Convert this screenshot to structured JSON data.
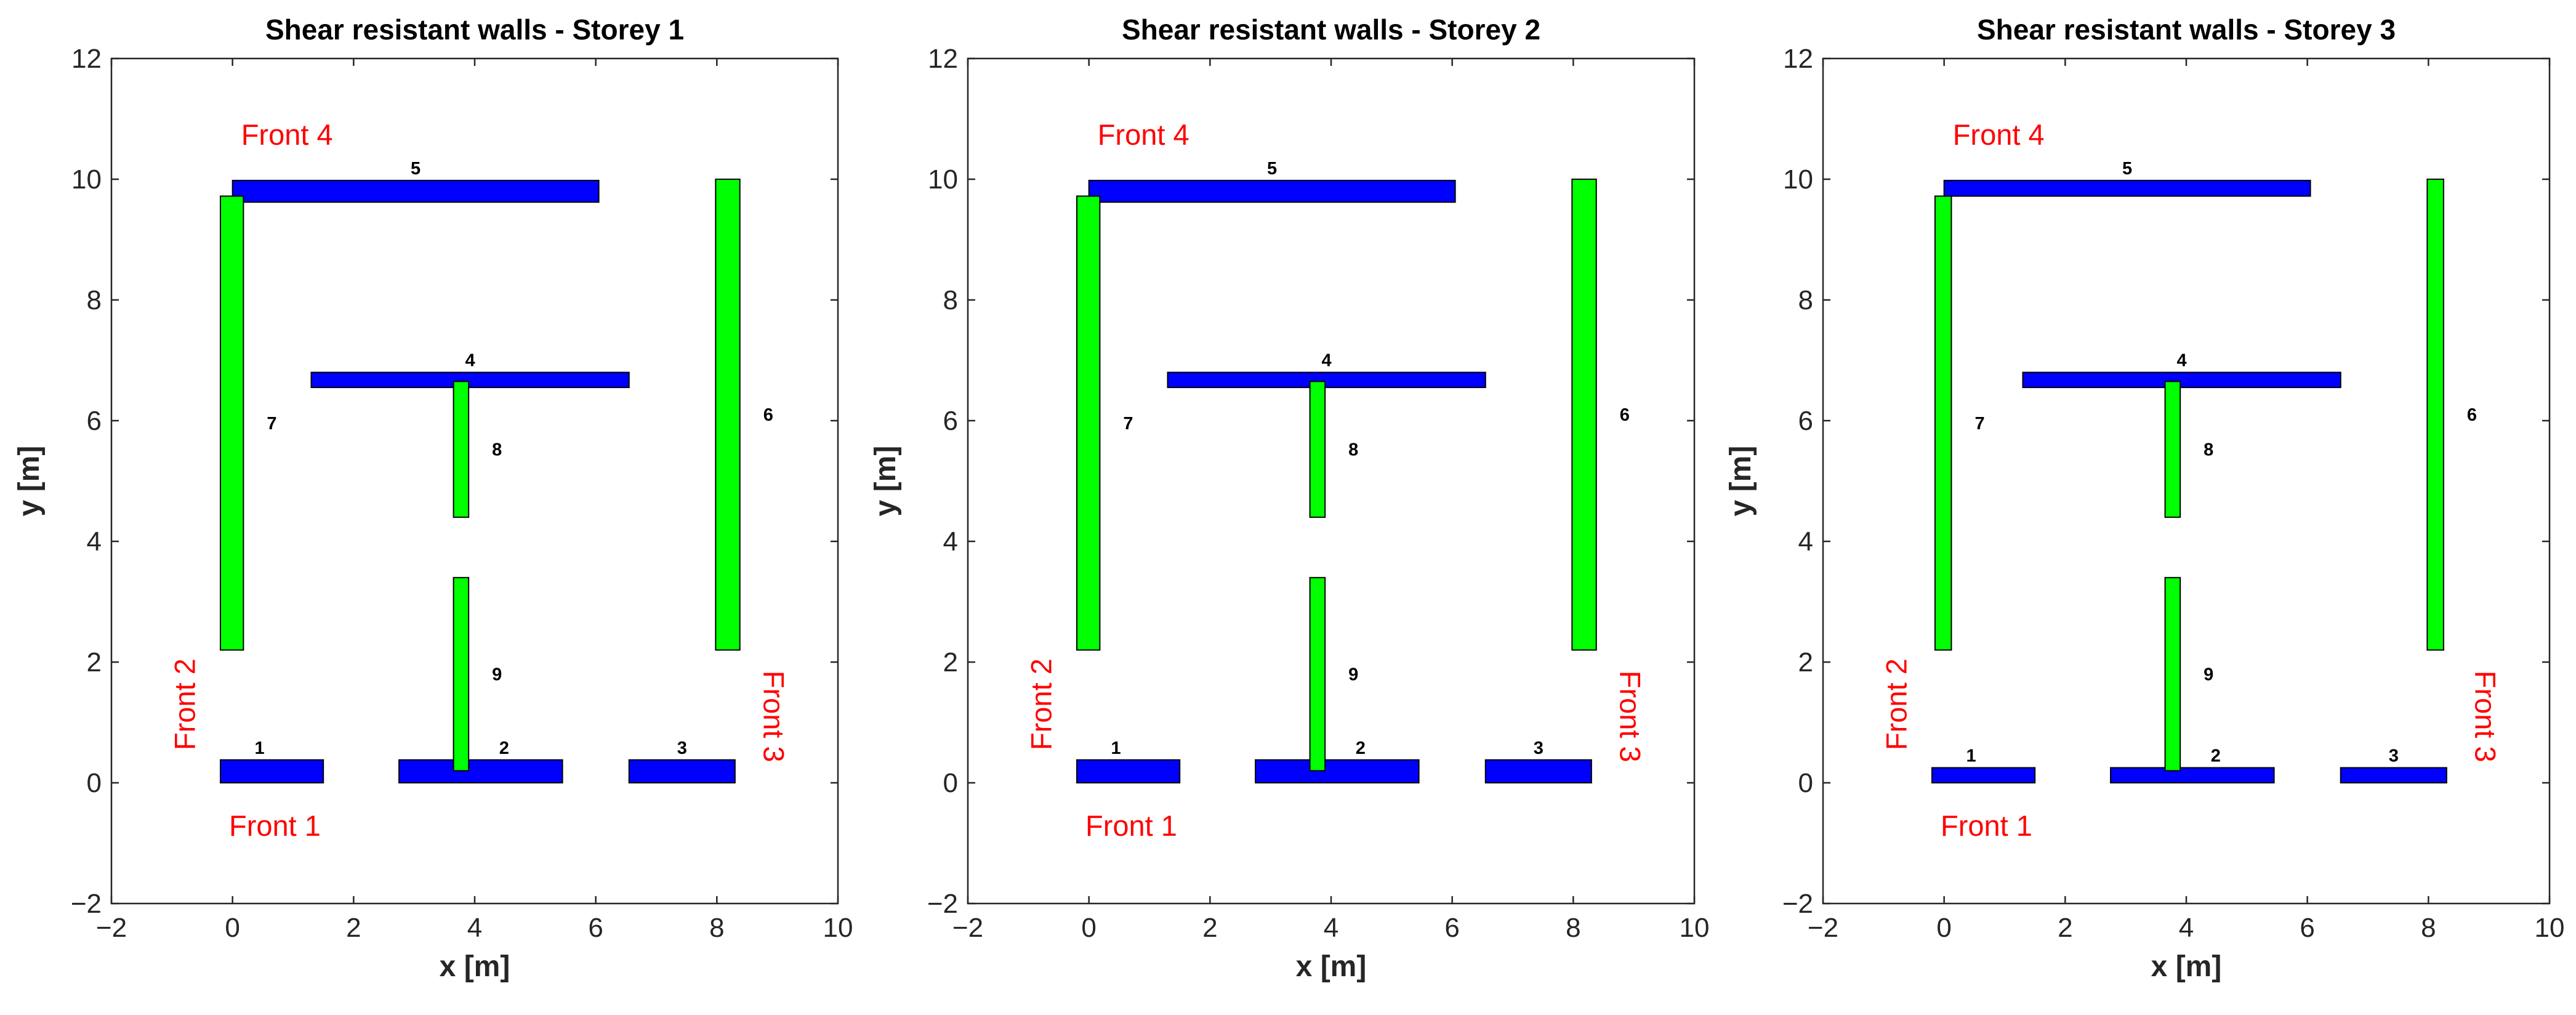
{
  "chart_data": [
    {
      "type": "rectangle-plan",
      "title": "Shear resistant walls - Storey 1",
      "xlabel": "x [m]",
      "ylabel": "y [m]",
      "xlim": [
        -2,
        10
      ],
      "ylim": [
        -2,
        12
      ],
      "xticks": [
        -2,
        0,
        2,
        4,
        6,
        8,
        10
      ],
      "yticks": [
        -2,
        0,
        2,
        4,
        6,
        8,
        10,
        12
      ],
      "colors": {
        "x_walls": "#0000ff",
        "y_walls": "#00ff00"
      },
      "walls": [
        {
          "id": "1",
          "direction": "x",
          "x1": -0.2,
          "x2": 1.5,
          "y1": 0.0,
          "y2": 0.38
        },
        {
          "id": "2",
          "direction": "x",
          "x1": 2.75,
          "x2": 5.45,
          "y1": 0.0,
          "y2": 0.38
        },
        {
          "id": "3",
          "direction": "x",
          "x1": 6.55,
          "x2": 8.3,
          "y1": 0.0,
          "y2": 0.38
        },
        {
          "id": "4",
          "direction": "x",
          "x1": 1.3,
          "x2": 6.55,
          "y1": 6.55,
          "y2": 6.8
        },
        {
          "id": "5",
          "direction": "x",
          "x1": 0.0,
          "x2": 6.05,
          "y1": 9.62,
          "y2": 9.98
        },
        {
          "id": "6",
          "direction": "y",
          "x1": 7.98,
          "x2": 8.38,
          "y1": 2.2,
          "y2": 10.0
        },
        {
          "id": "7",
          "direction": "y",
          "x1": -0.2,
          "x2": 0.18,
          "y1": 2.2,
          "y2": 9.72
        },
        {
          "id": "8",
          "direction": "y",
          "x1": 3.65,
          "x2": 3.9,
          "y1": 4.4,
          "y2": 6.65
        },
        {
          "id": "9",
          "direction": "y",
          "x1": 3.65,
          "x2": 3.9,
          "y1": 0.2,
          "y2": 3.4
        }
      ],
      "annotations": [
        {
          "text": "Front 1",
          "x": 0.7,
          "y": -0.75,
          "rotation": 0
        },
        {
          "text": "Front 2",
          "x": -0.75,
          "y": 1.3,
          "rotation": -90
        },
        {
          "text": "Front 3",
          "x": 8.9,
          "y": 1.1,
          "rotation": 90
        },
        {
          "text": "Front 4",
          "x": 0.9,
          "y": 10.7,
          "rotation": 0
        }
      ]
    },
    {
      "type": "rectangle-plan",
      "title": "Shear resistant walls - Storey 2",
      "xlabel": "x [m]",
      "ylabel": "y [m]",
      "xlim": [
        -2,
        10
      ],
      "ylim": [
        -2,
        12
      ],
      "xticks": [
        -2,
        0,
        2,
        4,
        6,
        8,
        10
      ],
      "yticks": [
        -2,
        0,
        2,
        4,
        6,
        8,
        10,
        12
      ],
      "colors": {
        "x_walls": "#0000ff",
        "y_walls": "#00ff00"
      },
      "walls": [
        {
          "id": "1",
          "direction": "x",
          "x1": -0.2,
          "x2": 1.5,
          "y1": 0.0,
          "y2": 0.38
        },
        {
          "id": "2",
          "direction": "x",
          "x1": 2.75,
          "x2": 5.45,
          "y1": 0.0,
          "y2": 0.38
        },
        {
          "id": "3",
          "direction": "x",
          "x1": 6.55,
          "x2": 8.3,
          "y1": 0.0,
          "y2": 0.38
        },
        {
          "id": "4",
          "direction": "x",
          "x1": 1.3,
          "x2": 6.55,
          "y1": 6.55,
          "y2": 6.8
        },
        {
          "id": "5",
          "direction": "x",
          "x1": 0.0,
          "x2": 6.05,
          "y1": 9.62,
          "y2": 9.98
        },
        {
          "id": "6",
          "direction": "y",
          "x1": 7.98,
          "x2": 8.38,
          "y1": 2.2,
          "y2": 10.0
        },
        {
          "id": "7",
          "direction": "y",
          "x1": -0.2,
          "x2": 0.18,
          "y1": 2.2,
          "y2": 9.72
        },
        {
          "id": "8",
          "direction": "y",
          "x1": 3.65,
          "x2": 3.9,
          "y1": 4.4,
          "y2": 6.65
        },
        {
          "id": "9",
          "direction": "y",
          "x1": 3.65,
          "x2": 3.9,
          "y1": 0.2,
          "y2": 3.4
        }
      ],
      "annotations": [
        {
          "text": "Front 1",
          "x": 0.7,
          "y": -0.75,
          "rotation": 0
        },
        {
          "text": "Front 2",
          "x": -0.75,
          "y": 1.3,
          "rotation": -90
        },
        {
          "text": "Front 3",
          "x": 8.9,
          "y": 1.1,
          "rotation": 90
        },
        {
          "text": "Front 4",
          "x": 0.9,
          "y": 10.7,
          "rotation": 0
        }
      ]
    },
    {
      "type": "rectangle-plan",
      "title": "Shear resistant walls - Storey 3",
      "xlabel": "x [m]",
      "ylabel": "y [m]",
      "xlim": [
        -2,
        10
      ],
      "ylim": [
        -2,
        12
      ],
      "xticks": [
        -2,
        0,
        2,
        4,
        6,
        8,
        10
      ],
      "yticks": [
        -2,
        0,
        2,
        4,
        6,
        8,
        10,
        12
      ],
      "colors": {
        "x_walls": "#0000ff",
        "y_walls": "#00ff00"
      },
      "walls": [
        {
          "id": "1",
          "direction": "x",
          "x1": -0.2,
          "x2": 1.5,
          "y1": 0.0,
          "y2": 0.25
        },
        {
          "id": "2",
          "direction": "x",
          "x1": 2.75,
          "x2": 5.45,
          "y1": 0.0,
          "y2": 0.25
        },
        {
          "id": "3",
          "direction": "x",
          "x1": 6.55,
          "x2": 8.3,
          "y1": 0.0,
          "y2": 0.25
        },
        {
          "id": "4",
          "direction": "x",
          "x1": 1.3,
          "x2": 6.55,
          "y1": 6.55,
          "y2": 6.8
        },
        {
          "id": "5",
          "direction": "x",
          "x1": 0.0,
          "x2": 6.05,
          "y1": 9.72,
          "y2": 9.98
        },
        {
          "id": "6",
          "direction": "y",
          "x1": 7.98,
          "x2": 8.25,
          "y1": 2.2,
          "y2": 10.0
        },
        {
          "id": "7",
          "direction": "y",
          "x1": -0.15,
          "x2": 0.12,
          "y1": 2.2,
          "y2": 9.72
        },
        {
          "id": "8",
          "direction": "y",
          "x1": 3.65,
          "x2": 3.9,
          "y1": 4.4,
          "y2": 6.65
        },
        {
          "id": "9",
          "direction": "y",
          "x1": 3.65,
          "x2": 3.9,
          "y1": 0.2,
          "y2": 3.4
        }
      ],
      "annotations": [
        {
          "text": "Front 1",
          "x": 0.7,
          "y": -0.75,
          "rotation": 0
        },
        {
          "text": "Front 2",
          "x": -0.75,
          "y": 1.3,
          "rotation": -90
        },
        {
          "text": "Front 3",
          "x": 8.9,
          "y": 1.1,
          "rotation": 90
        },
        {
          "text": "Front 4",
          "x": 0.9,
          "y": 10.7,
          "rotation": 0
        }
      ]
    }
  ]
}
